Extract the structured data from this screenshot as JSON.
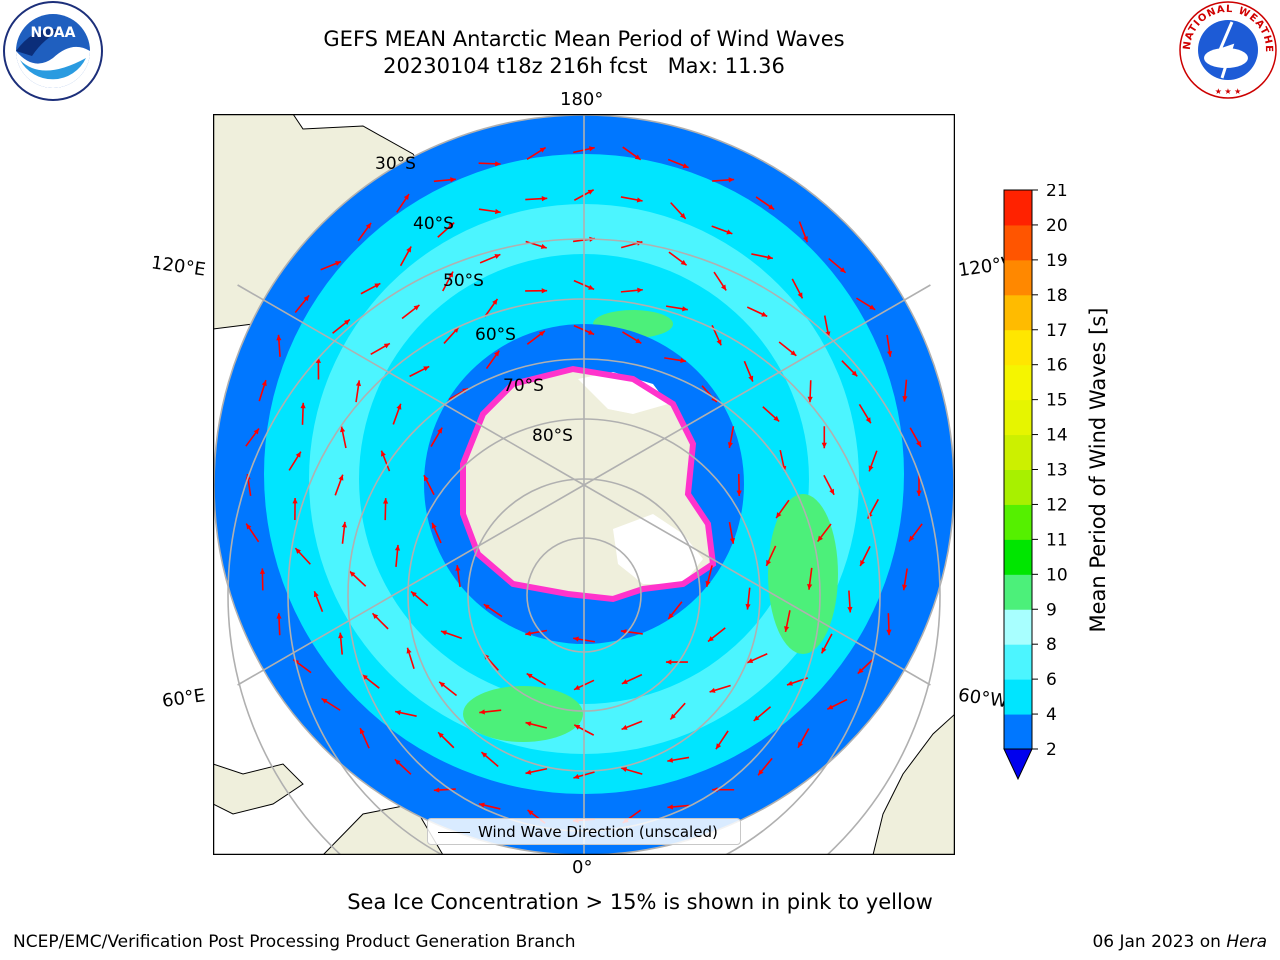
{
  "title_line1": "GEFS MEAN Antarctic Mean Period of Wind Waves",
  "title_line2": "20230104 t18z 216h fcst   Max: 11.36",
  "map": {
    "lon_labels": {
      "top": "180°",
      "bottom": "0°",
      "upper_left": "120°E",
      "upper_right": "120°W",
      "lower_left": "60°E",
      "lower_right": "60°W"
    },
    "lat_labels": [
      "30°S",
      "40°S",
      "50°S",
      "60°S",
      "70°S",
      "80°S"
    ],
    "legend_label": "Wind Wave Direction (unscaled)",
    "colors": {
      "land": "#efefdc",
      "ice": "#ffffff",
      "frame": "#000000",
      "grid": "#b0b0b0",
      "arrow": "#ff0000"
    }
  },
  "colorbar": {
    "label": "Mean Period of Wind Waves [s]",
    "ticks": [
      "2",
      "4",
      "6",
      "8",
      "9",
      "10",
      "11",
      "12",
      "13",
      "14",
      "15",
      "16",
      "17",
      "18",
      "19",
      "20",
      "21"
    ],
    "colors": [
      "#0077ff",
      "#00e5ff",
      "#4cf5ff",
      "#a8ffff",
      "#4cf07a",
      "#00e600",
      "#55f000",
      "#a8f000",
      "#ccf000",
      "#e6f500",
      "#f5f500",
      "#ffe600",
      "#ffbb00",
      "#ff8800",
      "#ff5500",
      "#ff2200"
    ],
    "extend_color": "#0000ee"
  },
  "subtitle": "Sea Ice Concentration > 15% is shown in pink to yellow",
  "footer": {
    "credit": "NCEP/EMC/Verification Post Processing Product Generation Branch",
    "date": "06 Jan 2023 on ",
    "machine": "Hera"
  },
  "logos": {
    "left": "NOAA",
    "right": "NATIONAL WEATHER SERVICE"
  }
}
